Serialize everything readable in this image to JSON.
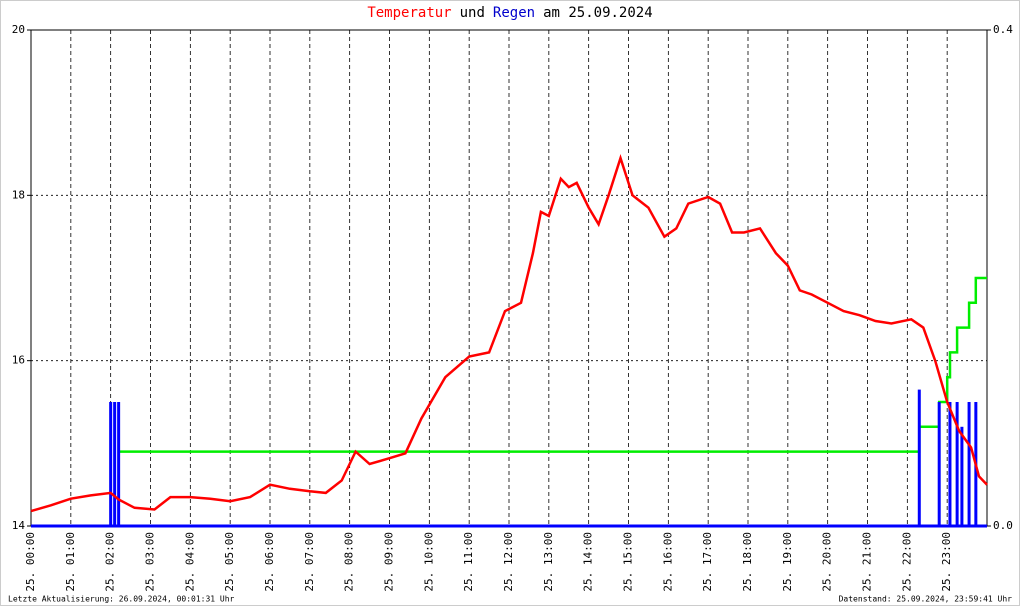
{
  "chart_data": {
    "type": "line",
    "title_parts": [
      {
        "text": "Temperatur",
        "color": "#ff0000"
      },
      {
        "text": "und",
        "color": "#000000"
      },
      {
        "text": "Regen",
        "color": "#0000cc"
      },
      {
        "text": "am 25.09.2024",
        "color": "#000000"
      }
    ],
    "xlim": [
      0,
      24
    ],
    "xticks": [
      {
        "value": 0,
        "label": "25. 00:00"
      },
      {
        "value": 1,
        "label": "25. 01:00"
      },
      {
        "value": 2,
        "label": "25. 02:00"
      },
      {
        "value": 3,
        "label": "25. 03:00"
      },
      {
        "value": 4,
        "label": "25. 04:00"
      },
      {
        "value": 5,
        "label": "25. 05:00"
      },
      {
        "value": 6,
        "label": "25. 06:00"
      },
      {
        "value": 7,
        "label": "25. 07:00"
      },
      {
        "value": 8,
        "label": "25. 08:00"
      },
      {
        "value": 9,
        "label": "25. 09:00"
      },
      {
        "value": 10,
        "label": "25. 10:00"
      },
      {
        "value": 11,
        "label": "25. 11:00"
      },
      {
        "value": 12,
        "label": "25. 12:00"
      },
      {
        "value": 13,
        "label": "25. 13:00"
      },
      {
        "value": 14,
        "label": "25. 14:00"
      },
      {
        "value": 15,
        "label": "25. 15:00"
      },
      {
        "value": 16,
        "label": "25. 16:00"
      },
      {
        "value": 17,
        "label": "25. 17:00"
      },
      {
        "value": 18,
        "label": "25. 18:00"
      },
      {
        "value": 19,
        "label": "25. 19:00"
      },
      {
        "value": 20,
        "label": "25. 20:00"
      },
      {
        "value": 21,
        "label": "25. 21:00"
      },
      {
        "value": 22,
        "label": "25. 22:00"
      },
      {
        "value": 23,
        "label": "25. 23:00"
      }
    ],
    "ylim": [
      14,
      20
    ],
    "yticks": [
      14,
      16,
      18,
      20
    ],
    "y2lim": [
      0,
      0.4
    ],
    "y2ticks": [
      {
        "value": 0,
        "label": "0.0"
      },
      {
        "value": 0.4,
        "label": "0.4"
      }
    ],
    "grid": true,
    "series": [
      {
        "type": "line",
        "color": "#ff0000",
        "x": [
          0,
          0.5,
          1.0,
          1.5,
          2.0,
          2.2,
          2.6,
          3.1,
          3.5,
          4.0,
          4.5,
          5.0,
          5.5,
          6.0,
          6.5,
          7.0,
          7.4,
          7.8,
          8.15,
          8.5,
          9.0,
          9.4,
          9.8,
          10.4,
          11.0,
          11.5,
          11.9,
          12.3,
          12.6,
          12.8,
          13.0,
          13.3,
          13.5,
          13.7,
          14.0,
          14.25,
          14.5,
          14.8,
          15.1,
          15.5,
          15.9,
          16.2,
          16.5,
          17.0,
          17.3,
          17.6,
          17.9,
          18.3,
          18.7,
          19.0,
          19.3,
          19.6,
          20.0,
          20.4,
          20.8,
          21.2,
          21.6,
          22.1,
          22.4,
          22.7,
          23.0,
          23.3,
          23.6,
          23.8,
          24.0
        ],
        "values": [
          14.18,
          14.25,
          14.33,
          14.37,
          14.4,
          14.32,
          14.22,
          14.2,
          14.35,
          14.35,
          14.33,
          14.3,
          14.35,
          14.5,
          14.45,
          14.42,
          14.4,
          14.55,
          14.9,
          14.75,
          14.82,
          14.88,
          15.3,
          15.8,
          16.05,
          16.1,
          16.6,
          16.7,
          17.3,
          17.8,
          17.75,
          18.2,
          18.1,
          18.15,
          17.85,
          17.65,
          18.0,
          18.45,
          18.0,
          17.85,
          17.5,
          17.6,
          17.9,
          17.98,
          17.9,
          17.55,
          17.55,
          17.6,
          17.3,
          17.15,
          16.85,
          16.8,
          16.7,
          16.6,
          16.55,
          16.48,
          16.45,
          16.5,
          16.4,
          16.0,
          15.5,
          15.15,
          14.95,
          14.6,
          14.5
        ]
      },
      {
        "type": "bar",
        "axis": "y2",
        "color": "#0000ff",
        "x": [
          2.0,
          2.1,
          2.2,
          22.3,
          22.8,
          23.07,
          23.25,
          23.37,
          23.55,
          23.72
        ],
        "values": [
          0.1,
          0.1,
          0.1,
          0.11,
          0.1,
          0.1,
          0.1,
          0.08,
          0.1,
          0.1
        ]
      },
      {
        "type": "line",
        "axis": "y2",
        "color": "#00ee00",
        "x": [
          2.2,
          22.3,
          22.3,
          22.8,
          22.8,
          23.0,
          23.0,
          23.07,
          23.07,
          23.25,
          23.25,
          23.55,
          23.55,
          23.72,
          23.72,
          24.0
        ],
        "values": [
          0.06,
          0.06,
          0.08,
          0.08,
          0.1,
          0.1,
          0.12,
          0.12,
          0.14,
          0.14,
          0.16,
          0.16,
          0.18,
          0.18,
          0.2,
          0.2
        ]
      }
    ],
    "footer_left": "Letzte Aktualisierung: 26.09.2024, 00:01:31 Uhr",
    "footer_right": "Datenstand: 25.09.2024, 23:59:41 Uhr"
  }
}
